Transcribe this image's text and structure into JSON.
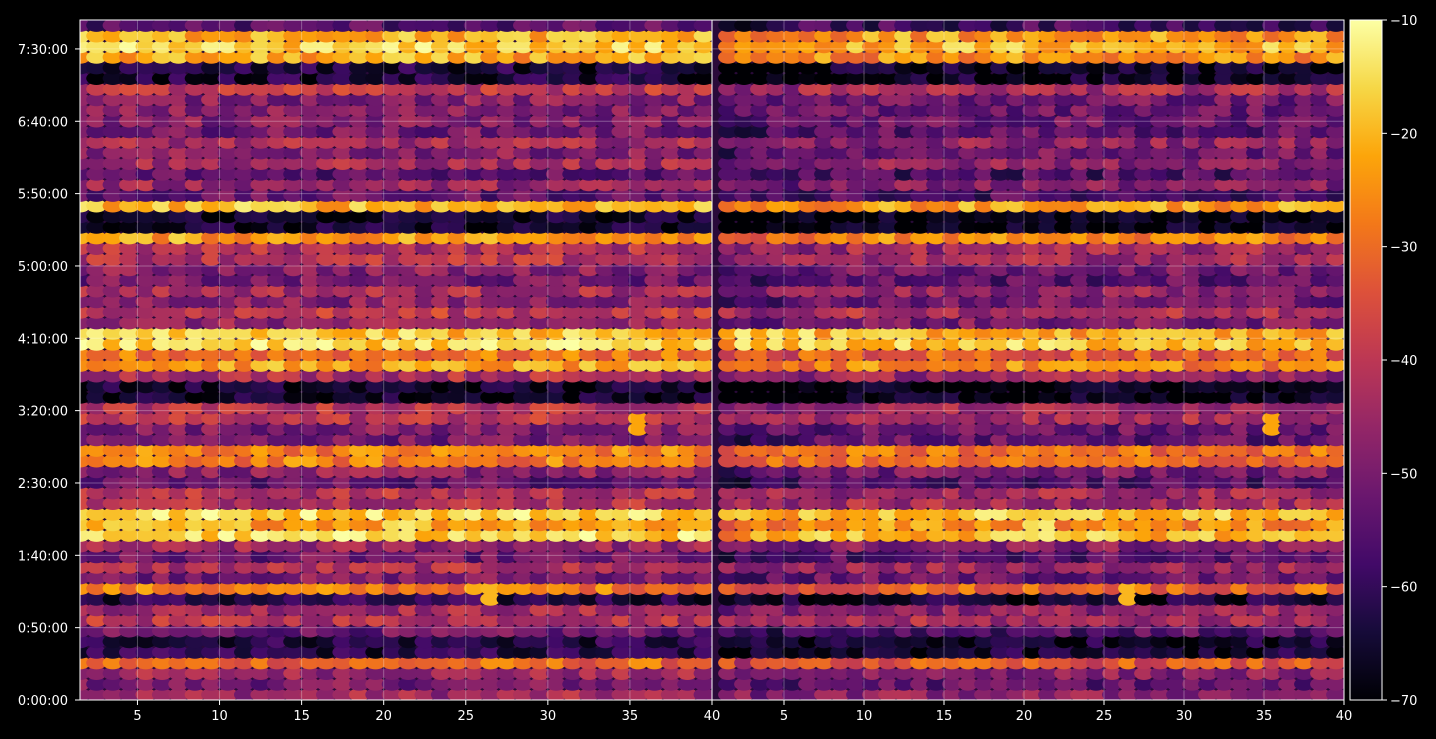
{
  "chart_data": {
    "type": "heatmap",
    "title": "",
    "panels": [
      {
        "name": "left",
        "xlabel": "",
        "ylabel": "",
        "xlim": [
          1.5,
          40
        ],
        "ylim_seconds": [
          0,
          28200
        ],
        "x_ticks": [
          5,
          10,
          15,
          20,
          25,
          30,
          35,
          40
        ],
        "x_tick_labels": [
          "5",
          "10",
          "15",
          "20",
          "25",
          "30",
          "35",
          "40"
        ],
        "y_ticks_seconds": [
          0,
          3000,
          6000,
          9000,
          12000,
          15000,
          18000,
          21000,
          24000,
          27000
        ],
        "y_tick_labels": [
          "0:00:00",
          "0:50:00",
          "1:40:00",
          "2:30:00",
          "3:20:00",
          "4:10:00",
          "5:00:00",
          "5:50:00",
          "6:40:00",
          "7:30:00"
        ]
      },
      {
        "name": "right",
        "xlabel": "",
        "ylabel": "",
        "xlim": [
          0.5,
          40
        ],
        "ylim_seconds": [
          0,
          28200
        ],
        "x_ticks": [
          5,
          10,
          15,
          20,
          25,
          30,
          35,
          40
        ],
        "x_tick_labels": [
          "5",
          "10",
          "15",
          "20",
          "25",
          "30",
          "35",
          "40"
        ],
        "y_ticks_seconds": [],
        "y_tick_labels": []
      }
    ],
    "grid": true,
    "colormap": "inferno",
    "colorbar": {
      "range": [
        -70,
        -10
      ],
      "ticks": [
        -10,
        -20,
        -30,
        -40,
        -50,
        -60,
        -70
      ],
      "tick_labels": [
        "−10",
        "−20",
        "−30",
        "−40",
        "−50",
        "−60",
        "−70"
      ]
    },
    "value_model": {
      "rows": 64,
      "columns": 39,
      "baseline": -47,
      "hot_rows": [
        {
          "y_seconds": 27450,
          "value": -22
        },
        {
          "y_seconds": 27100,
          "value": -28
        },
        {
          "y_seconds": 20150,
          "value": -24
        },
        {
          "y_seconds": 19400,
          "value": -26
        },
        {
          "y_seconds": 15100,
          "value": -20
        },
        {
          "y_seconds": 14400,
          "value": -30
        },
        {
          "y_seconds": 10100,
          "value": -30
        },
        {
          "y_seconds": 7250,
          "value": -22
        },
        {
          "y_seconds": 4300,
          "value": -32
        },
        {
          "y_seconds": 1800,
          "value": -34
        }
      ],
      "cold_rows": [
        {
          "y_seconds": 26100,
          "value": -64
        },
        {
          "y_seconds": 19750,
          "value": -66
        },
        {
          "y_seconds": 12900,
          "value": -66
        },
        {
          "y_seconds": 4100,
          "value": -62
        },
        {
          "y_seconds": 2300,
          "value": -62
        }
      ],
      "hot_spots": [
        {
          "x": 2.5,
          "y_seconds": 15100,
          "value": -12
        },
        {
          "x": 4.5,
          "y_seconds": 15100,
          "value": -13
        },
        {
          "x": 6.5,
          "y_seconds": 15100,
          "value": -12
        },
        {
          "x": 8.5,
          "y_seconds": 15100,
          "value": -14
        },
        {
          "x": 21.5,
          "y_seconds": 7250,
          "value": -13
        },
        {
          "x": 20.5,
          "y_seconds": 7250,
          "value": -15
        },
        {
          "x": 12.5,
          "y_seconds": 27450,
          "value": -16
        },
        {
          "x": 26.5,
          "y_seconds": 4300,
          "value": -20
        },
        {
          "x": 35.5,
          "y_seconds": 11600,
          "value": -22
        }
      ]
    }
  }
}
